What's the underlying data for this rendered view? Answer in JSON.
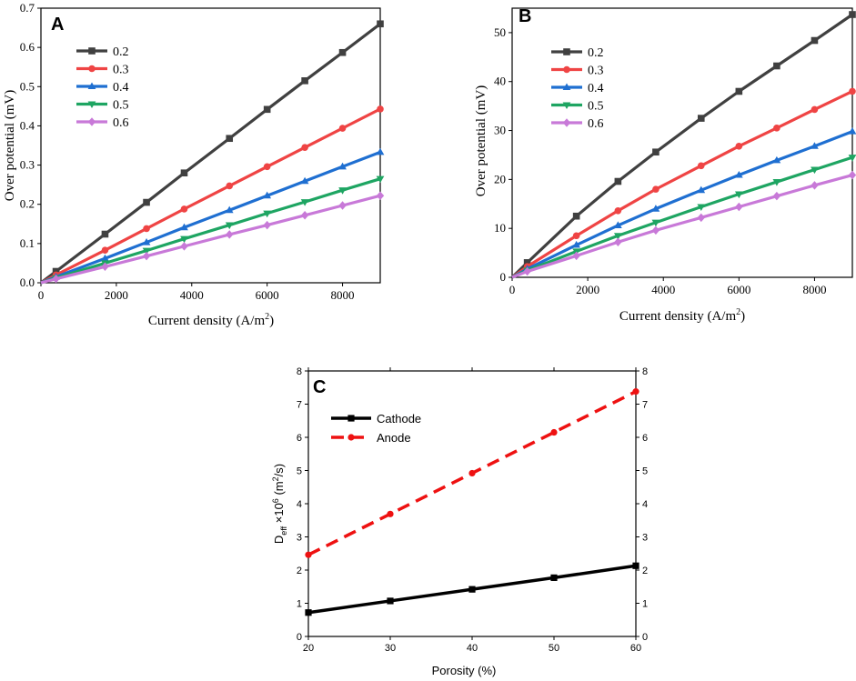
{
  "chart_data": [
    {
      "type": "line",
      "panel_label": "A",
      "xlabel": "Current density (A/m",
      "xlabel_sup": "2",
      "xlabel_end": ")",
      "ylabel": "Over potential (mV)",
      "xlim": [
        0,
        9000
      ],
      "ylim": [
        0,
        0.7
      ],
      "xticks": [
        0,
        2000,
        4000,
        6000,
        8000
      ],
      "xtick_labels": [
        "0",
        "2000",
        "4000",
        "6000",
        "8000"
      ],
      "yticks": [
        0.0,
        0.1,
        0.2,
        0.3,
        0.4,
        0.5,
        0.6,
        0.7
      ],
      "ytick_labels": [
        "0.0",
        "0.1",
        "0.2",
        "0.3",
        "0.4",
        "0.5",
        "0.6",
        "0.7"
      ],
      "legend_position": "top-left",
      "x": [
        0,
        400,
        1700,
        2800,
        3800,
        5000,
        6000,
        7000,
        8000,
        9000
      ],
      "series": [
        {
          "name": "0.2",
          "color": "#404040",
          "marker": "square",
          "values": [
            0,
            0.029,
            0.124,
            0.205,
            0.28,
            0.368,
            0.442,
            0.515,
            0.587,
            0.66
          ]
        },
        {
          "name": "0.3",
          "color": "#ef4444",
          "marker": "circle",
          "values": [
            0,
            0.02,
            0.083,
            0.138,
            0.188,
            0.247,
            0.296,
            0.345,
            0.394,
            0.443
          ]
        },
        {
          "name": "0.4",
          "color": "#1f6fd1",
          "marker": "triangle-up",
          "values": [
            0,
            0.015,
            0.062,
            0.103,
            0.141,
            0.185,
            0.222,
            0.259,
            0.296,
            0.333
          ]
        },
        {
          "name": "0.5",
          "color": "#1ea562",
          "marker": "triangle-down",
          "values": [
            0,
            0.012,
            0.05,
            0.082,
            0.112,
            0.147,
            0.177,
            0.206,
            0.236,
            0.265
          ]
        },
        {
          "name": "0.6",
          "color": "#c879d8",
          "marker": "diamond",
          "values": [
            0,
            0.01,
            0.041,
            0.068,
            0.093,
            0.123,
            0.147,
            0.172,
            0.197,
            0.222
          ]
        }
      ]
    },
    {
      "type": "line",
      "panel_label": "B",
      "xlabel": "Current density (A/m",
      "xlabel_sup": "2",
      "xlabel_end": ")",
      "ylabel": "Over potential (mV)",
      "xlim": [
        0,
        9000
      ],
      "ylim": [
        0,
        55
      ],
      "xticks": [
        0,
        2000,
        4000,
        6000,
        8000
      ],
      "xtick_labels": [
        "0",
        "2000",
        "4000",
        "6000",
        "8000"
      ],
      "yticks": [
        0,
        10,
        20,
        30,
        40,
        50
      ],
      "ytick_labels": [
        "0",
        "10",
        "20",
        "30",
        "40",
        "50"
      ],
      "legend_position": "top-left",
      "x": [
        0,
        400,
        1700,
        2800,
        3800,
        5000,
        6000,
        7000,
        8000,
        9000
      ],
      "series": [
        {
          "name": "0.2",
          "color": "#404040",
          "marker": "square",
          "values": [
            0,
            3.0,
            12.5,
            19.6,
            25.6,
            32.5,
            38.0,
            43.2,
            48.4,
            53.7
          ]
        },
        {
          "name": "0.3",
          "color": "#ef4444",
          "marker": "circle",
          "values": [
            0,
            2.2,
            8.5,
            13.6,
            18.0,
            22.8,
            26.8,
            30.5,
            34.3,
            38.0
          ]
        },
        {
          "name": "0.4",
          "color": "#1f6fd1",
          "marker": "triangle-up",
          "values": [
            0,
            1.7,
            6.6,
            10.6,
            14.0,
            17.8,
            20.9,
            23.9,
            26.8,
            29.8
          ]
        },
        {
          "name": "0.5",
          "color": "#1ea562",
          "marker": "triangle-down",
          "values": [
            0,
            1.4,
            5.3,
            8.5,
            11.2,
            14.4,
            17.0,
            19.5,
            22.0,
            24.5
          ]
        },
        {
          "name": "0.6",
          "color": "#c879d8",
          "marker": "diamond",
          "values": [
            0,
            1.2,
            4.4,
            7.2,
            9.6,
            12.2,
            14.4,
            16.6,
            18.8,
            20.9
          ]
        }
      ]
    },
    {
      "type": "line",
      "panel_label": "C",
      "xlabel": "Porosity (%)",
      "ylabel_main": "D",
      "ylabel_sub": "eff",
      "ylabel_mid": " ×10",
      "ylabel_sup": "6",
      "ylabel_unit": " (m",
      "ylabel_unit_sup": "2",
      "ylabel_end": "/s)",
      "xlim": [
        20,
        60
      ],
      "ylim": [
        0,
        8
      ],
      "xticks": [
        20,
        30,
        40,
        50,
        60
      ],
      "xtick_labels": [
        "20",
        "30",
        "40",
        "50",
        "60"
      ],
      "yticks": [
        0,
        1,
        2,
        3,
        4,
        5,
        6,
        7,
        8
      ],
      "ytick_labels": [
        "0",
        "1",
        "2",
        "3",
        "4",
        "5",
        "6",
        "7",
        "8"
      ],
      "legend_position": "top-left",
      "x": [
        20,
        30,
        40,
        50,
        60
      ],
      "series": [
        {
          "name": "Cathode",
          "color": "#000000",
          "marker": "square",
          "line_style": "solid",
          "values": [
            0.72,
            1.07,
            1.42,
            1.77,
            2.13
          ]
        },
        {
          "name": "Anode",
          "color": "#ee1111",
          "marker": "circle",
          "line_style": "dashed",
          "values": [
            2.46,
            3.69,
            4.92,
            6.15,
            7.38
          ]
        }
      ]
    }
  ]
}
